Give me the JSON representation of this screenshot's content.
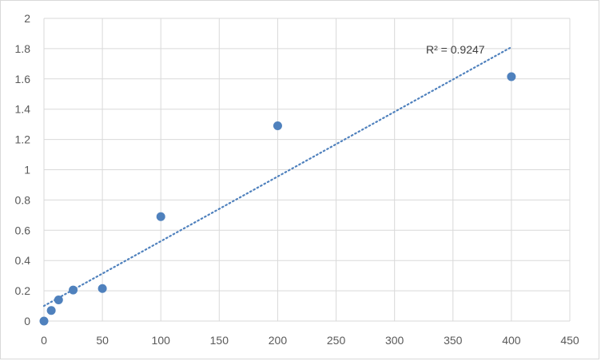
{
  "chart_data": {
    "type": "scatter",
    "title": "",
    "xlabel": "",
    "ylabel": "",
    "xlim": [
      0,
      450
    ],
    "ylim": [
      0,
      2
    ],
    "x_ticks": [
      0,
      50,
      100,
      150,
      200,
      250,
      300,
      350,
      400,
      450
    ],
    "y_ticks": [
      0,
      0.2,
      0.4,
      0.6,
      0.8,
      1,
      1.2,
      1.4,
      1.6,
      1.8,
      2
    ],
    "grid": true,
    "legend": "none",
    "series": [
      {
        "points": [
          {
            "x": 0,
            "y": 0.0
          },
          {
            "x": 6.25,
            "y": 0.07
          },
          {
            "x": 12.5,
            "y": 0.14
          },
          {
            "x": 25,
            "y": 0.205
          },
          {
            "x": 50,
            "y": 0.215
          },
          {
            "x": 100,
            "y": 0.69
          },
          {
            "x": 200,
            "y": 1.29
          },
          {
            "x": 400,
            "y": 1.615
          }
        ],
        "color": "#4f81bd"
      }
    ],
    "trendline": {
      "type": "linear",
      "style": "dotted",
      "color": "#4f81bd",
      "x_range": [
        0,
        400
      ],
      "y_at_start": 0.1,
      "y_at_end": 1.81
    },
    "annotation": "R² = 0.9247",
    "colors": {
      "grid": "#d9d9d9",
      "tick_text": "#595959"
    }
  }
}
